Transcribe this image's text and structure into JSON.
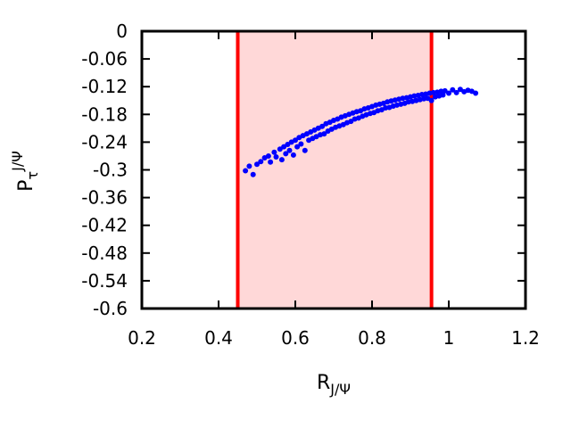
{
  "chart_data": {
    "type": "scatter",
    "xlabel": {
      "main": "R",
      "sub": "J/Ψ"
    },
    "ylabel": {
      "main": "P",
      "sub": "τ",
      "sup": "J/Ψ"
    },
    "xlim": [
      0.2,
      1.2
    ],
    "ylim": [
      -0.6,
      0
    ],
    "x_ticks": [
      "0.2",
      "0.4",
      "0.6",
      "0.8",
      "1",
      "1.2"
    ],
    "x_tick_values": [
      0.2,
      0.4,
      0.6,
      0.8,
      1.0,
      1.2
    ],
    "y_ticks": [
      "0",
      "-0.06",
      "-0.12",
      "-0.18",
      "-0.24",
      "-0.3",
      "-0.36",
      "-0.42",
      "-0.48",
      "-0.54",
      "-0.6"
    ],
    "y_tick_values": [
      0,
      -0.06,
      -0.12,
      -0.18,
      -0.24,
      -0.3,
      -0.36,
      -0.42,
      -0.48,
      -0.54,
      -0.6
    ],
    "grid": false,
    "legend": "none",
    "band": {
      "x_min": 0.45,
      "x_max": 0.955,
      "fill": "#ffd8d8",
      "line_color": "#ff0000"
    },
    "point_color": "#0000ff",
    "points": [
      [
        0.47,
        -0.302
      ],
      [
        0.48,
        -0.292
      ],
      [
        0.49,
        -0.31
      ],
      [
        0.5,
        -0.288
      ],
      [
        0.51,
        -0.282
      ],
      [
        0.52,
        -0.274
      ],
      [
        0.53,
        -0.27
      ],
      [
        0.535,
        -0.283
      ],
      [
        0.545,
        -0.262
      ],
      [
        0.55,
        -0.272
      ],
      [
        0.56,
        -0.255
      ],
      [
        0.565,
        -0.278
      ],
      [
        0.57,
        -0.25
      ],
      [
        0.575,
        -0.265
      ],
      [
        0.58,
        -0.245
      ],
      [
        0.585,
        -0.258
      ],
      [
        0.59,
        -0.24
      ],
      [
        0.595,
        -0.268
      ],
      [
        0.6,
        -0.236
      ],
      [
        0.605,
        -0.25
      ],
      [
        0.61,
        -0.23
      ],
      [
        0.615,
        -0.244
      ],
      [
        0.62,
        -0.226
      ],
      [
        0.625,
        -0.258
      ],
      [
        0.63,
        -0.222
      ],
      [
        0.635,
        -0.236
      ],
      [
        0.64,
        -0.218
      ],
      [
        0.645,
        -0.232
      ],
      [
        0.65,
        -0.214
      ],
      [
        0.655,
        -0.228
      ],
      [
        0.66,
        -0.21
      ],
      [
        0.665,
        -0.224
      ],
      [
        0.67,
        -0.206
      ],
      [
        0.675,
        -0.222
      ],
      [
        0.68,
        -0.2
      ],
      [
        0.685,
        -0.216
      ],
      [
        0.69,
        -0.197
      ],
      [
        0.695,
        -0.212
      ],
      [
        0.7,
        -0.193
      ],
      [
        0.705,
        -0.208
      ],
      [
        0.71,
        -0.19
      ],
      [
        0.715,
        -0.205
      ],
      [
        0.72,
        -0.186
      ],
      [
        0.725,
        -0.202
      ],
      [
        0.73,
        -0.183
      ],
      [
        0.735,
        -0.198
      ],
      [
        0.74,
        -0.18
      ],
      [
        0.745,
        -0.195
      ],
      [
        0.75,
        -0.177
      ],
      [
        0.755,
        -0.19
      ],
      [
        0.76,
        -0.174
      ],
      [
        0.765,
        -0.188
      ],
      [
        0.77,
        -0.172
      ],
      [
        0.775,
        -0.184
      ],
      [
        0.78,
        -0.168
      ],
      [
        0.785,
        -0.181
      ],
      [
        0.79,
        -0.166
      ],
      [
        0.795,
        -0.178
      ],
      [
        0.8,
        -0.163
      ],
      [
        0.805,
        -0.176
      ],
      [
        0.81,
        -0.16
      ],
      [
        0.815,
        -0.172
      ],
      [
        0.82,
        -0.158
      ],
      [
        0.825,
        -0.17
      ],
      [
        0.83,
        -0.156
      ],
      [
        0.835,
        -0.166
      ],
      [
        0.84,
        -0.153
      ],
      [
        0.845,
        -0.165
      ],
      [
        0.85,
        -0.151
      ],
      [
        0.855,
        -0.162
      ],
      [
        0.86,
        -0.149
      ],
      [
        0.865,
        -0.16
      ],
      [
        0.87,
        -0.147
      ],
      [
        0.875,
        -0.158
      ],
      [
        0.88,
        -0.145
      ],
      [
        0.885,
        -0.156
      ],
      [
        0.89,
        -0.144
      ],
      [
        0.895,
        -0.153
      ],
      [
        0.9,
        -0.142
      ],
      [
        0.905,
        -0.152
      ],
      [
        0.91,
        -0.14
      ],
      [
        0.915,
        -0.15
      ],
      [
        0.92,
        -0.139
      ],
      [
        0.925,
        -0.148
      ],
      [
        0.93,
        -0.137
      ],
      [
        0.935,
        -0.146
      ],
      [
        0.94,
        -0.136
      ],
      [
        0.945,
        -0.145
      ],
      [
        0.95,
        -0.134
      ],
      [
        0.955,
        -0.15
      ],
      [
        0.96,
        -0.133
      ],
      [
        0.965,
        -0.142
      ],
      [
        0.97,
        -0.132
      ],
      [
        0.975,
        -0.14
      ],
      [
        0.98,
        -0.13
      ],
      [
        0.985,
        -0.138
      ],
      [
        0.99,
        -0.129
      ],
      [
        1.0,
        -0.134
      ],
      [
        1.01,
        -0.127
      ],
      [
        1.02,
        -0.133
      ],
      [
        1.03,
        -0.126
      ],
      [
        1.04,
        -0.131
      ],
      [
        1.05,
        -0.128
      ],
      [
        1.06,
        -0.13
      ],
      [
        1.07,
        -0.134
      ]
    ]
  }
}
